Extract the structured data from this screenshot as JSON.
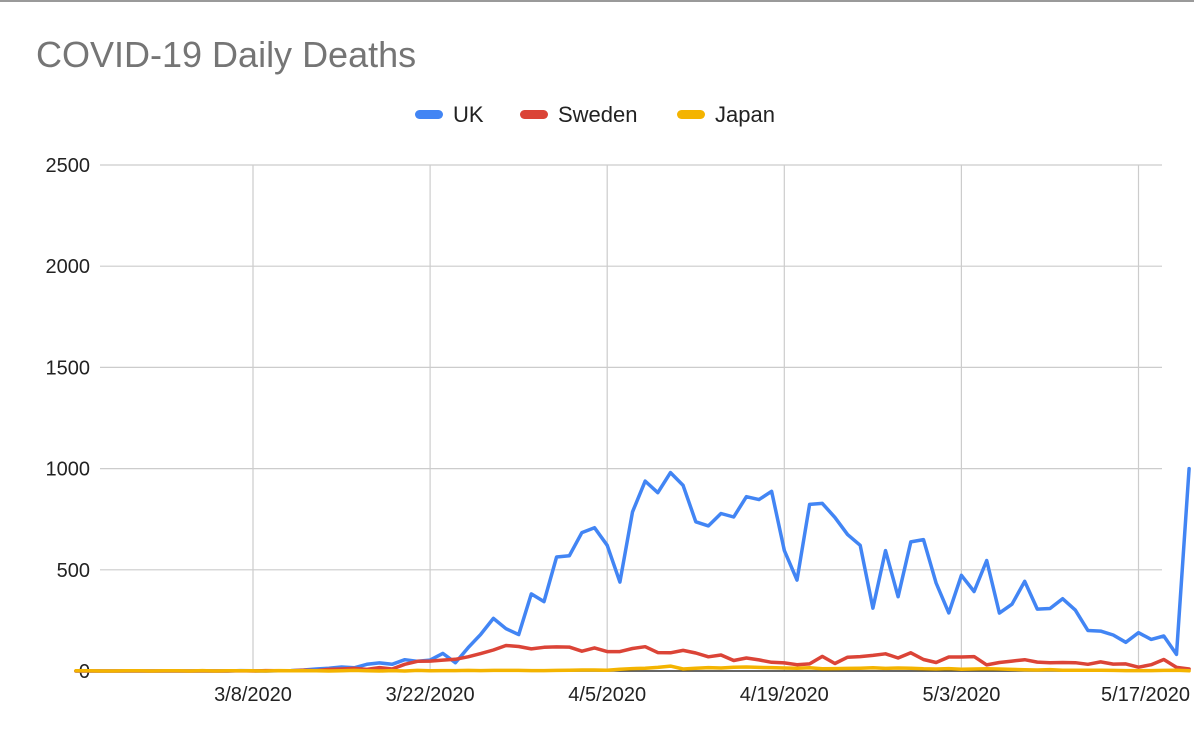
{
  "chart_data": {
    "type": "line",
    "title": "COVID-19 Daily Deaths",
    "xlabel": "",
    "ylabel": "",
    "ylim": [
      0,
      2500
    ],
    "yticks": [
      "0",
      "500",
      "1000",
      "1500",
      "2000",
      "2500"
    ],
    "xtick_labels": [
      "3/8/2020",
      "3/22/2020",
      "4/5/2020",
      "4/19/2020",
      "5/3/2020",
      "5/17/2020"
    ],
    "x_start": "2/22/2020",
    "x_end": "5/19/2020",
    "grid": true,
    "legend_position": "top",
    "series": [
      {
        "name": "UK",
        "color": "#4285f4",
        "values": [
          0,
          0,
          0,
          0,
          0,
          0,
          0,
          0,
          0,
          0,
          0,
          0,
          0,
          2,
          1,
          0,
          1,
          2,
          5,
          10,
          14,
          20,
          16,
          33,
          40,
          33,
          56,
          48,
          54,
          87,
          41,
          115,
          181,
          260,
          209,
          180,
          381,
          343,
          563,
          569,
          684,
          708,
          621,
          439,
          786,
          938,
          881,
          980,
          917,
          737,
          717,
          778,
          761,
          861,
          847,
          888,
          596,
          449,
          823,
          828,
          759,
          674,
          621,
          311,
          595,
          367,
          638,
          649,
          435,
          287,
          473,
          393,
          546,
          286,
          330,
          443,
          306,
          309,
          357,
          301,
          200,
          197,
          178,
          142,
          189,
          156,
          173,
          82,
          1000
        ]
      },
      {
        "name": "Sweden",
        "color": "#db4437",
        "values": [
          0,
          0,
          0,
          0,
          0,
          0,
          0,
          0,
          0,
          0,
          0,
          0,
          0,
          1,
          0,
          2,
          1,
          1,
          4,
          2,
          8,
          10,
          13,
          8,
          17,
          10,
          33,
          48,
          49,
          54,
          58,
          70,
          86,
          104,
          126,
          121,
          109,
          117,
          119,
          118,
          98,
          114,
          96,
          96,
          111,
          120,
          91,
          90,
          102,
          89,
          70,
          79,
          52,
          64,
          55,
          43,
          40,
          31,
          35,
          72,
          37,
          68,
          71,
          77,
          85,
          64,
          90,
          57,
          42,
          69,
          69,
          71,
          30,
          42,
          49,
          56,
          44,
          41,
          42,
          41,
          33,
          45,
          34,
          35,
          19,
          31,
          57,
          18,
          10
        ]
      },
      {
        "name": "Japan",
        "color": "#f4b400",
        "values": [
          1,
          1,
          0,
          0,
          1,
          1,
          0,
          1,
          1,
          0,
          2,
          0,
          1,
          1,
          1,
          0,
          2,
          1,
          1,
          1,
          0,
          1,
          3,
          1,
          0,
          2,
          0,
          3,
          1,
          2,
          2,
          3,
          2,
          3,
          3,
          3,
          2,
          2,
          3,
          4,
          5,
          5,
          4,
          9,
          12,
          14,
          18,
          24,
          10,
          14,
          17,
          15,
          19,
          20,
          18,
          17,
          15,
          14,
          16,
          11,
          12,
          13,
          14,
          16,
          13,
          15,
          14,
          11,
          10,
          12,
          9,
          10,
          11,
          10,
          8,
          6,
          5,
          7,
          4,
          4,
          4,
          4,
          3,
          2,
          2,
          2,
          3,
          4,
          1
        ]
      }
    ]
  }
}
